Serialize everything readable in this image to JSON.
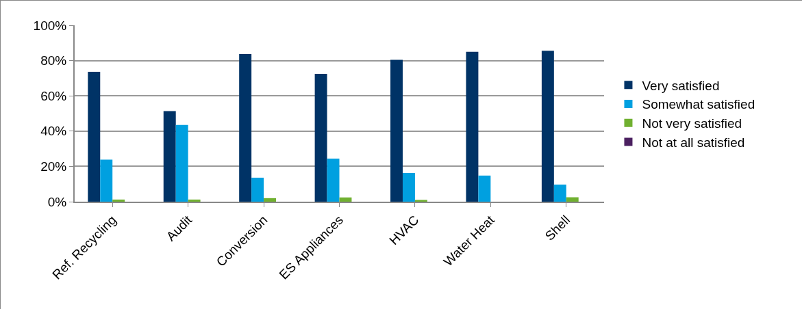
{
  "chart_data": {
    "type": "bar",
    "categories": [
      "Ref. Recycling",
      "Audit",
      "Conversion",
      "ES Appliances",
      "HVAC",
      "Water Heat",
      "Shell"
    ],
    "series": [
      {
        "name": "Very satisfied",
        "color": "#003366",
        "values": [
          73.6,
          51.4,
          83.7,
          72.5,
          80.4,
          85,
          85.6
        ]
      },
      {
        "name": "Somewhat satisfied",
        "color": "#00a0e0",
        "values": [
          23.8,
          43.5,
          13.6,
          24.4,
          16.3,
          14.8,
          9.7
        ]
      },
      {
        "name": "Not very satisfied",
        "color": "#70b030",
        "values": [
          1.2,
          1.2,
          2,
          2.4,
          1,
          0,
          2.5
        ]
      },
      {
        "name": "Not at all satisfied",
        "color": "#4b2060",
        "values": [
          0,
          0,
          0,
          0,
          0,
          0,
          0
        ]
      }
    ],
    "ylim": [
      0,
      100
    ],
    "yticks": [
      {
        "value": 0,
        "label": "0%"
      },
      {
        "value": 20,
        "label": "20%"
      },
      {
        "value": 40,
        "label": "40%"
      },
      {
        "value": 60,
        "label": "60%"
      },
      {
        "value": 80,
        "label": "80%"
      },
      {
        "value": 100,
        "label": "100%"
      }
    ],
    "grid": "y",
    "legend": "right"
  }
}
